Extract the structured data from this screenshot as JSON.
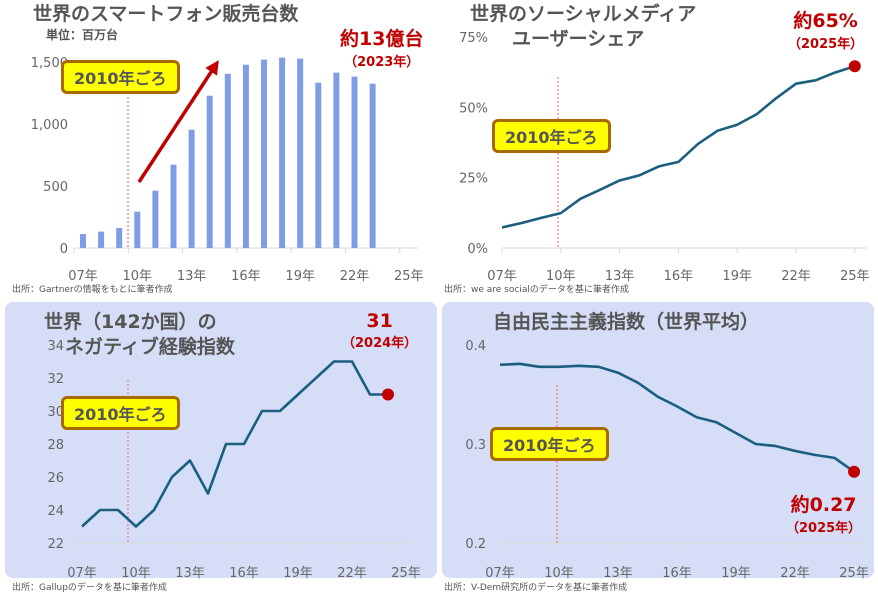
{
  "badge": "2010年ごろ",
  "chart_data": [
    {
      "type": "bar",
      "title": "世界のスマートフォン販売台数",
      "unit": "単位：百万台",
      "x": [
        2007,
        2008,
        2009,
        2010,
        2011,
        2012,
        2013,
        2014,
        2015,
        2016,
        2017,
        2018,
        2019,
        2020,
        2021,
        2022,
        2023
      ],
      "values": [
        113,
        132,
        161,
        293,
        462,
        672,
        954,
        1228,
        1405,
        1478,
        1519,
        1535,
        1527,
        1333,
        1414,
        1382,
        1325
      ],
      "yticks": [
        "0",
        "500",
        "1,000",
        "1,500"
      ],
      "ylim": [
        0,
        1500
      ],
      "xticks": [
        "07年",
        "10年",
        "13年",
        "16年",
        "19年",
        "22年",
        "25年"
      ],
      "annotation": "約13億台",
      "annotation_sub": "（2023年）",
      "source": "出所：Gartnerの情報をもとに筆者作成",
      "color": "#7f9de4"
    },
    {
      "type": "line",
      "title": "世界のソーシャルメディア",
      "title2": "ユーザーシェア",
      "x": [
        2007,
        2008,
        2009,
        2010,
        2011,
        2012,
        2013,
        2014,
        2015,
        2016,
        2017,
        2018,
        2019,
        2020,
        2021,
        2022,
        2023,
        2024,
        2025
      ],
      "values": [
        7.3,
        8.9,
        10.7,
        12.4,
        17.5,
        20.7,
        24,
        25.8,
        29,
        30.6,
        37,
        41.7,
        43.8,
        47.6,
        53.3,
        58.4,
        59.6,
        62.4,
        64.6
      ],
      "yticks": [
        "0%",
        "25%",
        "50%",
        "75%"
      ],
      "ylim": [
        0,
        75
      ],
      "xticks": [
        "07年",
        "10年",
        "13年",
        "16年",
        "19年",
        "22年",
        "25年"
      ],
      "annotation": "約65%",
      "annotation_sub": "（2025年）",
      "source": "出所：we are socialのデータを基に筆者作成",
      "color": "#1a5f80"
    },
    {
      "type": "line",
      "title": "世界（142か国）の",
      "title2": "ネガティブ経験指数",
      "x": [
        2007,
        2008,
        2009,
        2010,
        2011,
        2012,
        2013,
        2014,
        2015,
        2016,
        2017,
        2018,
        2019,
        2020,
        2021,
        2022,
        2023,
        2024
      ],
      "values": [
        23,
        24,
        24,
        23,
        24,
        26,
        27,
        25,
        28,
        28,
        30,
        30,
        31,
        32,
        33,
        33,
        31,
        31
      ],
      "yticks": [
        "22",
        "24",
        "26",
        "28",
        "30",
        "32",
        "34"
      ],
      "ylim": [
        22,
        34
      ],
      "xticks": [
        "07年",
        "10年",
        "13年",
        "16年",
        "19年",
        "22年",
        "25年"
      ],
      "annotation": "31",
      "annotation_sub": "（2024年）",
      "source": "出所：Gallupのデータを基に筆者作成",
      "color": "#1a5f80"
    },
    {
      "type": "line",
      "title": "自由民主主義指数（世界平均）",
      "x": [
        2007,
        2008,
        2009,
        2010,
        2011,
        2012,
        2013,
        2014,
        2015,
        2016,
        2017,
        2018,
        2019,
        2020,
        2021,
        2022,
        2023,
        2024,
        2025
      ],
      "values": [
        0.38,
        0.381,
        0.378,
        0.378,
        0.379,
        0.378,
        0.372,
        0.362,
        0.348,
        0.338,
        0.327,
        0.322,
        0.311,
        0.3,
        0.298,
        0.293,
        0.289,
        0.286,
        0.272
      ],
      "yticks": [
        "0.2",
        "0.3",
        "0.4"
      ],
      "ylim": [
        0.2,
        0.4
      ],
      "xticks": [
        "07年",
        "10年",
        "13年",
        "16年",
        "19年",
        "22年",
        "25年"
      ],
      "annotation": "約0.27",
      "annotation_sub": "（2025年）",
      "source": "出所：V-Dem研究所のデータを基に筆者作成",
      "color": "#1a5f80"
    }
  ]
}
